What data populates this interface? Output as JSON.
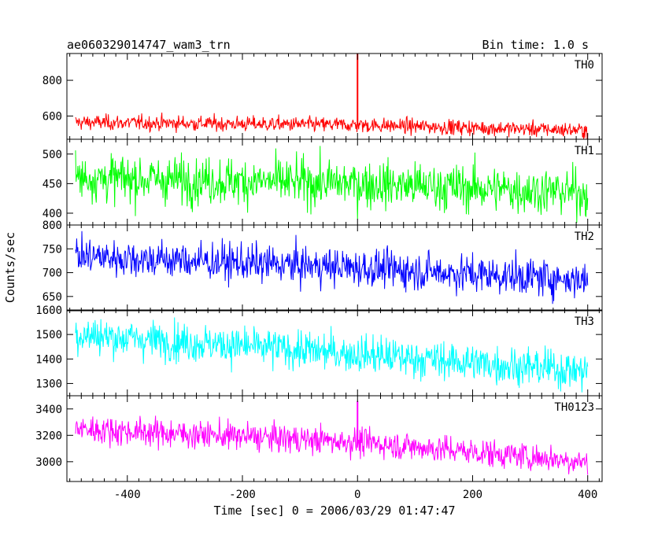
{
  "chart_data": {
    "type": "line",
    "title": "ae060329014747_wam3_trn",
    "subtitle": "Bin time: 1.0 s",
    "xlabel": "Time [sec] 0 = 2006/03/29 01:47:47",
    "ylabel": "Counts/sec",
    "xlim": [
      -505,
      425
    ],
    "x_ticks": [
      -400,
      -200,
      0,
      200,
      400
    ],
    "grid": false,
    "bin_time_s": 1.0,
    "panels": [
      {
        "name": "TH0",
        "color": "#ff0000",
        "ylim": [
          470,
          950
        ],
        "y_ticks": [
          600,
          800
        ],
        "trend": [
          [
            -490,
            565
          ],
          [
            0,
            550
          ],
          [
            400,
            520
          ]
        ],
        "spread": 30,
        "spikes": [
          {
            "x": 0,
            "y": 950
          }
        ]
      },
      {
        "name": "TH1",
        "color": "#00ff00",
        "ylim": [
          380,
          525
        ],
        "y_ticks": [
          400,
          450,
          500
        ],
        "trend": [
          [
            -490,
            460
          ],
          [
            0,
            450
          ],
          [
            400,
            435
          ]
        ],
        "spread": 28,
        "spikes": []
      },
      {
        "name": "TH2",
        "color": "#0000ff",
        "ylim": [
          620,
          800
        ],
        "y_ticks": [
          650,
          700,
          750,
          800
        ],
        "trend": [
          [
            -490,
            735
          ],
          [
            0,
            710
          ],
          [
            400,
            685
          ]
        ],
        "spread": 28,
        "spikes": []
      },
      {
        "name": "TH3",
        "color": "#00ffff",
        "ylim": [
          1250,
          1600
        ],
        "y_ticks": [
          1300,
          1400,
          1500,
          1600
        ],
        "trend": [
          [
            -490,
            1500
          ],
          [
            0,
            1420
          ],
          [
            400,
            1350
          ]
        ],
        "spread": 55,
        "spikes": []
      },
      {
        "name": "TH0123",
        "color": "#ff00ff",
        "ylim": [
          2850,
          3500
        ],
        "y_ticks": [
          3000,
          3200,
          3400
        ],
        "trend": [
          [
            -490,
            3250
          ],
          [
            0,
            3150
          ],
          [
            400,
            3000
          ]
        ],
        "spread": 75,
        "spikes": [
          {
            "x": 0,
            "y": 3460
          }
        ]
      }
    ]
  }
}
